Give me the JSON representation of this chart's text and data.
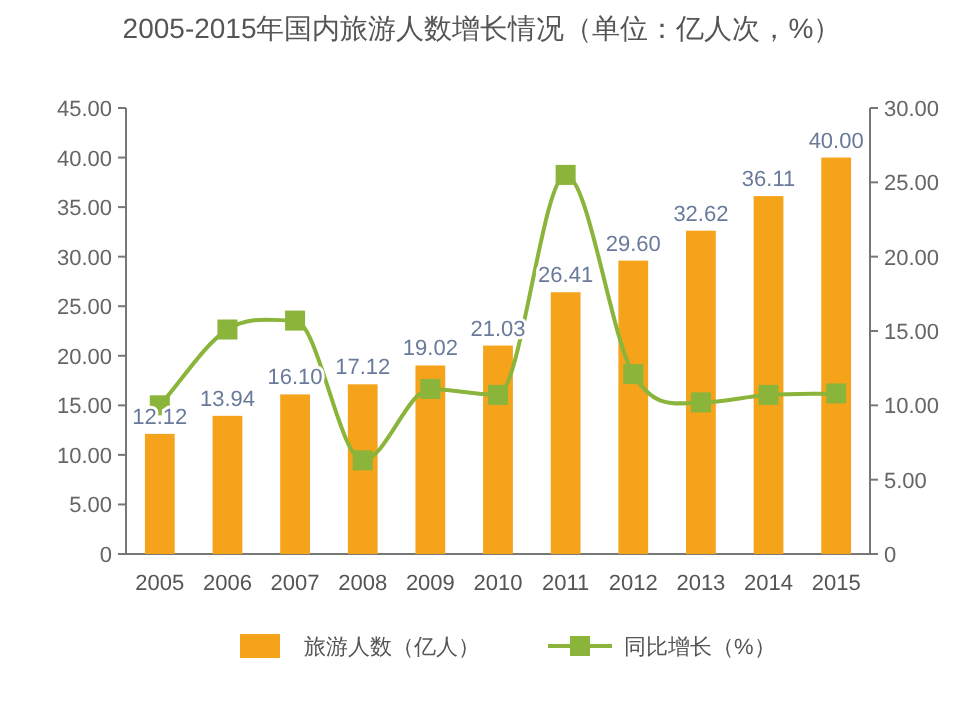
{
  "chart_data": {
    "type": "bar",
    "title": "2005-2015年国内旅游人数增长情况（单位：亿人次，%）",
    "categories": [
      "2005",
      "2006",
      "2007",
      "2008",
      "2009",
      "2010",
      "2011",
      "2012",
      "2013",
      "2014",
      "2015"
    ],
    "series": [
      {
        "name": "旅游人数（亿人）",
        "color": "#f5a31a",
        "values": [
          12.12,
          13.94,
          16.1,
          17.12,
          19.02,
          21.03,
          26.41,
          29.6,
          32.62,
          36.11,
          40.0
        ],
        "value_labels": [
          "12.12",
          "13.94",
          "16.10",
          "17.12",
          "19.02",
          "21.03",
          "26.41",
          "29.60",
          "32.62",
          "36.11",
          "40.00"
        ]
      },
      {
        "name": "同比增长（%）",
        "type": "line",
        "axis": "y2",
        "color": "#8ab43a",
        "marker": "square",
        "values": [
          10.0,
          15.1,
          15.7,
          6.3,
          11.1,
          10.7,
          25.5,
          12.1,
          10.2,
          10.7,
          10.8
        ]
      }
    ],
    "ylim": [
      0,
      45
    ],
    "yticks": [
      {
        "value": 0,
        "label": "0"
      },
      {
        "value": 5,
        "label": "5.00"
      },
      {
        "value": 10,
        "label": "10.00"
      },
      {
        "value": 15,
        "label": "15.00"
      },
      {
        "value": 20,
        "label": "20.00"
      },
      {
        "value": 25,
        "label": "25.00"
      },
      {
        "value": 30,
        "label": "30.00"
      },
      {
        "value": 35,
        "label": "35.00"
      },
      {
        "value": 40,
        "label": "40.00"
      },
      {
        "value": 45,
        "label": "45.00"
      }
    ],
    "y2lim": [
      0,
      30
    ],
    "y2ticks": [
      {
        "value": 0,
        "label": "0"
      },
      {
        "value": 5,
        "label": "5.00"
      },
      {
        "value": 10,
        "label": "10.00"
      },
      {
        "value": 15,
        "label": "15.00"
      },
      {
        "value": 20,
        "label": "20.00"
      },
      {
        "value": 25,
        "label": "25.00"
      },
      {
        "value": 30,
        "label": "30.00"
      }
    ],
    "grid": false,
    "legend": "bottom"
  }
}
